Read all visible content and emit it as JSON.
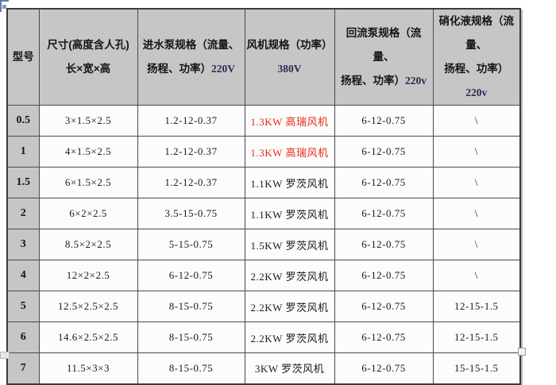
{
  "colors": {
    "header_bg": "#c6c6c6",
    "cell_bg": "#fcfcfc",
    "grid_line": "#4a4a4a",
    "red_text": "#e8281e",
    "voltage_navy": "#2b2b52",
    "body_text": "#1a1a1a"
  },
  "header": {
    "model": "型号",
    "size_line1": "尺寸(高度含人孔)",
    "size_line2": "长×宽×高",
    "inlet_line1": "进水泵规格（流量、",
    "inlet_line2": "扬程、功率）",
    "inlet_voltage": "220V",
    "fan_line1": "风机规格（功率）",
    "fan_voltage": "380V",
    "return_line1": "回流泵规格（流量、",
    "return_line2": "扬程、功率）",
    "return_voltage": "220v",
    "nitrate_line1": "硝化液规格（流量、",
    "nitrate_line2": "扬程、功率）",
    "nitrate_voltage": "220v"
  },
  "rows": [
    {
      "model": "0.5",
      "size": "3×1.5×2.5",
      "inlet": "1.2-12-0.37",
      "fan": "1.3KW 高瑞风机",
      "fan_color": "#e8281e",
      "return": "6-12-0.75",
      "nitrate": "\\"
    },
    {
      "model": "1",
      "size": "4×1.5×2.5",
      "inlet": "1.2-12-0.37",
      "fan": "1.3KW 高瑞风机",
      "fan_color": "#e8281e",
      "return": "6-12-0.75",
      "nitrate": "\\"
    },
    {
      "model": "1.5",
      "size": "6×1.5×2.5",
      "inlet": "1.2-12-0.37",
      "fan": "1.1KW 罗茨风机",
      "fan_color": "#1a1a1a",
      "return": "6-12-0.75",
      "nitrate": "\\"
    },
    {
      "model": "2",
      "size": "6×2×2.5",
      "inlet": "3.5-15-0.75",
      "fan": "1.1KW 罗茨风机",
      "fan_color": "#1a1a1a",
      "return": "6-12-0.75",
      "nitrate": "\\"
    },
    {
      "model": "3",
      "size": "8.5×2×2.5",
      "inlet": "5-15-0.75",
      "fan": "1.5KW 罗茨风机",
      "fan_color": "#1a1a1a",
      "return": "6-12-0.75",
      "nitrate": "\\"
    },
    {
      "model": "4",
      "size": "12×2×2.5",
      "inlet": "6-12-0.75",
      "fan": "2.2KW 罗茨风机",
      "fan_color": "#1a1a1a",
      "return": "6-12-0.75",
      "nitrate": "\\"
    },
    {
      "model": "5",
      "size": "12.5×2.5×2.5",
      "inlet": "8-15-0.75",
      "fan": "2.2KW 罗茨风机",
      "fan_color": "#1a1a1a",
      "return": "6-12-0.75",
      "nitrate": "12-15-1.5"
    },
    {
      "model": "6",
      "size": "14.6×2.5×2.5",
      "inlet": "8-15-0.75",
      "fan": "2.2KW 罗茨风机",
      "fan_color": "#1a1a1a",
      "return": "6-12-0.75",
      "nitrate": "12-15-1.5"
    },
    {
      "model": "7",
      "size": "11.5×3×3",
      "inlet": "8-15-0.75",
      "fan": "3KW 罗茨风机",
      "fan_color": "#1a1a1a",
      "return": "6-12-0.75",
      "nitrate": "15-15-1.5"
    }
  ]
}
